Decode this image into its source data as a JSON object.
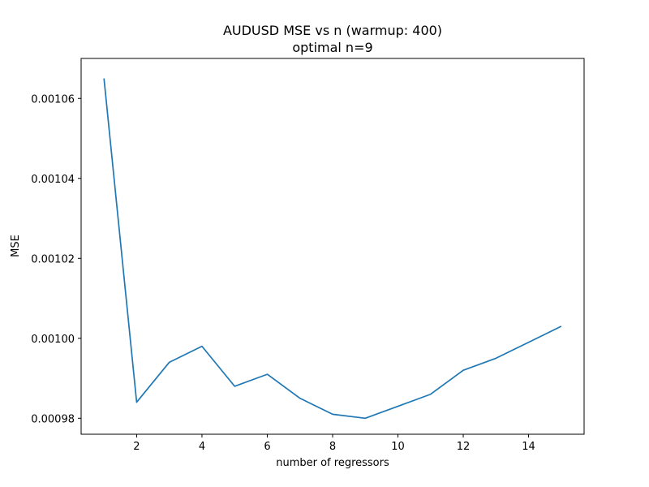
{
  "chart_data": {
    "type": "line",
    "title": "AUDUSD MSE vs n (warmup: 400)",
    "subtitle": "optimal n=9",
    "xlabel": "number of regressors",
    "ylabel": "MSE",
    "xlim": [
      0.3,
      15.7
    ],
    "ylim": [
      0.000976,
      0.00107
    ],
    "x_ticks": [
      2,
      4,
      6,
      8,
      10,
      12,
      14
    ],
    "x_tick_labels": [
      "2",
      "4",
      "6",
      "8",
      "10",
      "12",
      "14"
    ],
    "y_ticks": [
      0.00098,
      0.001,
      0.00102,
      0.00104,
      0.00106
    ],
    "y_tick_labels": [
      "0.00098",
      "0.00100",
      "0.00102",
      "0.00104",
      "0.00106"
    ],
    "grid": false,
    "line_color": "#1f77b4",
    "series": [
      {
        "x": [
          1,
          2,
          3,
          4,
          5,
          6,
          7,
          8,
          9,
          10,
          11,
          12,
          13,
          14,
          15
        ],
        "values": [
          0.001065,
          0.000984,
          0.000994,
          0.000998,
          0.000988,
          0.000991,
          0.000985,
          0.000981,
          0.00098,
          0.000983,
          0.000986,
          0.000992,
          0.000995,
          0.000999,
          0.001003
        ]
      }
    ]
  }
}
